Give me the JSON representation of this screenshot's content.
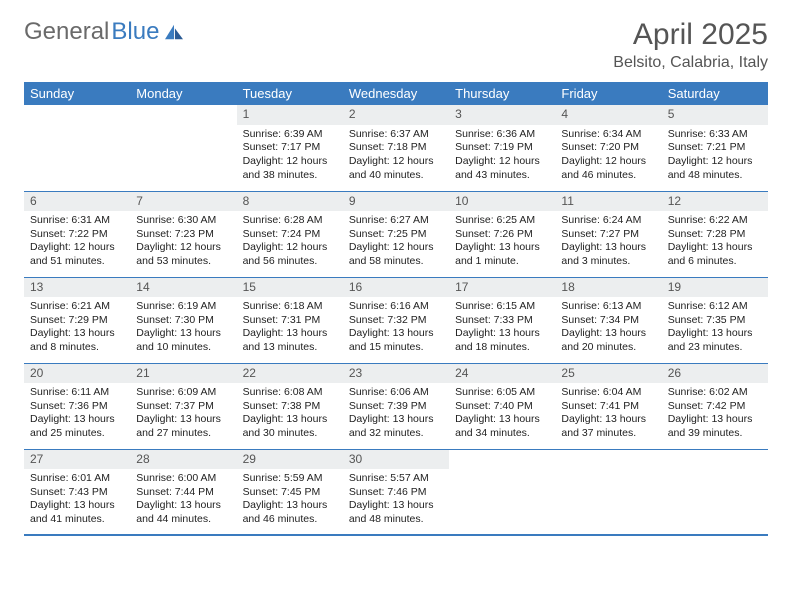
{
  "logo": {
    "text_gray": "General",
    "text_blue": "Blue"
  },
  "title": {
    "month": "April 2025",
    "location": "Belsito, Calabria, Italy"
  },
  "colors": {
    "header_bg": "#3a7bbf",
    "header_fg": "#ffffff",
    "daynum_bg": "#eceeef",
    "daynum_fg": "#555555",
    "rule": "#3a7bbf",
    "logo_gray": "#6a6a6a",
    "logo_blue": "#3a7bbf"
  },
  "weekdays": [
    "Sunday",
    "Monday",
    "Tuesday",
    "Wednesday",
    "Thursday",
    "Friday",
    "Saturday"
  ],
  "weeks": [
    [
      null,
      null,
      {
        "n": "1",
        "sunrise": "6:39 AM",
        "sunset": "7:17 PM",
        "daylight": "12 hours and 38 minutes."
      },
      {
        "n": "2",
        "sunrise": "6:37 AM",
        "sunset": "7:18 PM",
        "daylight": "12 hours and 40 minutes."
      },
      {
        "n": "3",
        "sunrise": "6:36 AM",
        "sunset": "7:19 PM",
        "daylight": "12 hours and 43 minutes."
      },
      {
        "n": "4",
        "sunrise": "6:34 AM",
        "sunset": "7:20 PM",
        "daylight": "12 hours and 46 minutes."
      },
      {
        "n": "5",
        "sunrise": "6:33 AM",
        "sunset": "7:21 PM",
        "daylight": "12 hours and 48 minutes."
      }
    ],
    [
      {
        "n": "6",
        "sunrise": "6:31 AM",
        "sunset": "7:22 PM",
        "daylight": "12 hours and 51 minutes."
      },
      {
        "n": "7",
        "sunrise": "6:30 AM",
        "sunset": "7:23 PM",
        "daylight": "12 hours and 53 minutes."
      },
      {
        "n": "8",
        "sunrise": "6:28 AM",
        "sunset": "7:24 PM",
        "daylight": "12 hours and 56 minutes."
      },
      {
        "n": "9",
        "sunrise": "6:27 AM",
        "sunset": "7:25 PM",
        "daylight": "12 hours and 58 minutes."
      },
      {
        "n": "10",
        "sunrise": "6:25 AM",
        "sunset": "7:26 PM",
        "daylight": "13 hours and 1 minute."
      },
      {
        "n": "11",
        "sunrise": "6:24 AM",
        "sunset": "7:27 PM",
        "daylight": "13 hours and 3 minutes."
      },
      {
        "n": "12",
        "sunrise": "6:22 AM",
        "sunset": "7:28 PM",
        "daylight": "13 hours and 6 minutes."
      }
    ],
    [
      {
        "n": "13",
        "sunrise": "6:21 AM",
        "sunset": "7:29 PM",
        "daylight": "13 hours and 8 minutes."
      },
      {
        "n": "14",
        "sunrise": "6:19 AM",
        "sunset": "7:30 PM",
        "daylight": "13 hours and 10 minutes."
      },
      {
        "n": "15",
        "sunrise": "6:18 AM",
        "sunset": "7:31 PM",
        "daylight": "13 hours and 13 minutes."
      },
      {
        "n": "16",
        "sunrise": "6:16 AM",
        "sunset": "7:32 PM",
        "daylight": "13 hours and 15 minutes."
      },
      {
        "n": "17",
        "sunrise": "6:15 AM",
        "sunset": "7:33 PM",
        "daylight": "13 hours and 18 minutes."
      },
      {
        "n": "18",
        "sunrise": "6:13 AM",
        "sunset": "7:34 PM",
        "daylight": "13 hours and 20 minutes."
      },
      {
        "n": "19",
        "sunrise": "6:12 AM",
        "sunset": "7:35 PM",
        "daylight": "13 hours and 23 minutes."
      }
    ],
    [
      {
        "n": "20",
        "sunrise": "6:11 AM",
        "sunset": "7:36 PM",
        "daylight": "13 hours and 25 minutes."
      },
      {
        "n": "21",
        "sunrise": "6:09 AM",
        "sunset": "7:37 PM",
        "daylight": "13 hours and 27 minutes."
      },
      {
        "n": "22",
        "sunrise": "6:08 AM",
        "sunset": "7:38 PM",
        "daylight": "13 hours and 30 minutes."
      },
      {
        "n": "23",
        "sunrise": "6:06 AM",
        "sunset": "7:39 PM",
        "daylight": "13 hours and 32 minutes."
      },
      {
        "n": "24",
        "sunrise": "6:05 AM",
        "sunset": "7:40 PM",
        "daylight": "13 hours and 34 minutes."
      },
      {
        "n": "25",
        "sunrise": "6:04 AM",
        "sunset": "7:41 PM",
        "daylight": "13 hours and 37 minutes."
      },
      {
        "n": "26",
        "sunrise": "6:02 AM",
        "sunset": "7:42 PM",
        "daylight": "13 hours and 39 minutes."
      }
    ],
    [
      {
        "n": "27",
        "sunrise": "6:01 AM",
        "sunset": "7:43 PM",
        "daylight": "13 hours and 41 minutes."
      },
      {
        "n": "28",
        "sunrise": "6:00 AM",
        "sunset": "7:44 PM",
        "daylight": "13 hours and 44 minutes."
      },
      {
        "n": "29",
        "sunrise": "5:59 AM",
        "sunset": "7:45 PM",
        "daylight": "13 hours and 46 minutes."
      },
      {
        "n": "30",
        "sunrise": "5:57 AM",
        "sunset": "7:46 PM",
        "daylight": "13 hours and 48 minutes."
      },
      null,
      null,
      null
    ]
  ],
  "labels": {
    "sunrise": "Sunrise:",
    "sunset": "Sunset:",
    "daylight": "Daylight:"
  }
}
